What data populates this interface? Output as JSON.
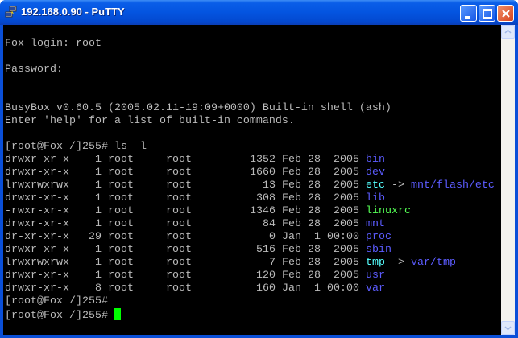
{
  "window": {
    "title": "192.168.0.90 - PuTTY",
    "app_icon": "putty-icon"
  },
  "colors": {
    "text": "#bbbbbb",
    "directory": "#5c5cff",
    "symlink": "#55ffff",
    "executable": "#55ff55",
    "cursor": "#00ff00"
  },
  "terminal": {
    "pre_lines": [
      "",
      "Fox login: root",
      "",
      "Password:",
      "",
      "",
      "BusyBox v0.60.5 (2005.02.11-19:09+0000) Built-in shell (ash)",
      "Enter 'help' for a list of built-in commands.",
      "",
      "[root@Fox /]255# ls -l"
    ],
    "listing": [
      {
        "perms": "drwxr-xr-x",
        "links": "1",
        "owner": "root",
        "group": "root",
        "size": "1352",
        "date": "Feb 28  2005",
        "name": "bin",
        "type": "dir"
      },
      {
        "perms": "drwxr-xr-x",
        "links": "1",
        "owner": "root",
        "group": "root",
        "size": "1660",
        "date": "Feb 28  2005",
        "name": "dev",
        "type": "dir"
      },
      {
        "perms": "lrwxrwxrwx",
        "links": "1",
        "owner": "root",
        "group": "root",
        "size": "13",
        "date": "Feb 28  2005",
        "name": "etc",
        "type": "lnk",
        "target": "mnt/flash/etc"
      },
      {
        "perms": "drwxr-xr-x",
        "links": "1",
        "owner": "root",
        "group": "root",
        "size": "308",
        "date": "Feb 28  2005",
        "name": "lib",
        "type": "dir"
      },
      {
        "perms": "-rwxr-xr-x",
        "links": "1",
        "owner": "root",
        "group": "root",
        "size": "1346",
        "date": "Feb 28  2005",
        "name": "linuxrc",
        "type": "exe"
      },
      {
        "perms": "drwxr-xr-x",
        "links": "1",
        "owner": "root",
        "group": "root",
        "size": "84",
        "date": "Feb 28  2005",
        "name": "mnt",
        "type": "dir"
      },
      {
        "perms": "dr-xr-xr-x",
        "links": "29",
        "owner": "root",
        "group": "root",
        "size": "0",
        "date": "Jan  1 00:00",
        "name": "proc",
        "type": "dir"
      },
      {
        "perms": "drwxr-xr-x",
        "links": "1",
        "owner": "root",
        "group": "root",
        "size": "516",
        "date": "Feb 28  2005",
        "name": "sbin",
        "type": "dir"
      },
      {
        "perms": "lrwxrwxrwx",
        "links": "1",
        "owner": "root",
        "group": "root",
        "size": "7",
        "date": "Feb 28  2005",
        "name": "tmp",
        "type": "lnk",
        "target": "var/tmp"
      },
      {
        "perms": "drwxr-xr-x",
        "links": "1",
        "owner": "root",
        "group": "root",
        "size": "120",
        "date": "Feb 28  2005",
        "name": "usr",
        "type": "dir"
      },
      {
        "perms": "drwxr-xr-x",
        "links": "8",
        "owner": "root",
        "group": "root",
        "size": "160",
        "date": "Jan  1 00:00",
        "name": "var",
        "type": "dir"
      }
    ],
    "post_lines": [
      "[root@Fox /]255#"
    ],
    "prompt": "[root@Fox /]255# ",
    "arrow": " -> "
  }
}
